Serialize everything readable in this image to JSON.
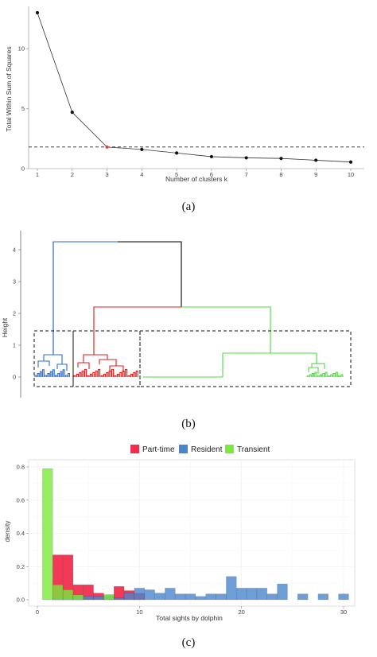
{
  "chart_data": [
    {
      "type": "line",
      "panel_label": "(a)",
      "xlabel": "Number of clusters k",
      "ylabel": "Total Within Sum of Squares",
      "x": [
        1,
        2,
        3,
        4,
        5,
        6,
        7,
        8,
        9,
        10
      ],
      "y": [
        13.0,
        4.7,
        1.8,
        1.6,
        1.3,
        1.0,
        0.9,
        0.85,
        0.7,
        0.55
      ],
      "highlight_x": 3,
      "reference_line_y": 1.8,
      "xticks": [
        "1",
        "2",
        "3",
        "4",
        "5",
        "6",
        "7",
        "8",
        "9",
        "10"
      ],
      "yticks": [
        "0",
        "5",
        "10"
      ],
      "ylim": [
        0,
        13.5
      ],
      "colors": {
        "line": "#333333",
        "point": "#111111",
        "highlight": "#e8423f"
      }
    },
    {
      "type": "dendrogram",
      "panel_label": "(b)",
      "ylabel": "Height",
      "yticks": [
        "0",
        "1",
        "2",
        "3",
        "4"
      ],
      "ylim": [
        0,
        4.3
      ],
      "merge_heights": {
        "root": 4.25,
        "red_green": 2.2,
        "blue": 0.7,
        "red": 0.7,
        "green": 0.75,
        "green_inner": 0.42
      },
      "cut_height": 1.45,
      "clusters": [
        "blue",
        "red",
        "green"
      ],
      "colors": {
        "blue": "#2a6dd1",
        "red": "#e32020",
        "green": "#4bdc3b",
        "root": "#000000"
      }
    },
    {
      "type": "bar",
      "panel_label": "(c)",
      "xlabel": "Total sights by dolphin",
      "ylabel": "density",
      "xticks": [
        "0",
        "10",
        "20",
        "30"
      ],
      "yticks": [
        "0.0",
        "0.2",
        "0.4",
        "0.6",
        "0.8"
      ],
      "xlim": [
        -1,
        31.5
      ],
      "ylim": [
        0,
        0.82
      ],
      "series": [
        {
          "name": "Part-time",
          "color": "#ef2f4f",
          "bins": [
            [
              1.5,
              2.5,
              0.27
            ],
            [
              2.5,
              3.5,
              0.27
            ],
            [
              3.5,
              4.5,
              0.09
            ],
            [
              4.5,
              5.5,
              0.09
            ],
            [
              5.5,
              6.5,
              0.04
            ],
            [
              6.5,
              7.5,
              0.02
            ],
            [
              7.5,
              8.5,
              0.08
            ],
            [
              8.5,
              9.5,
              0.055
            ],
            [
              9.5,
              10.5,
              0.04
            ]
          ]
        },
        {
          "name": "Resident",
          "color": "#4a86cc",
          "bins": [
            [
              1.5,
              2.5,
              0.01
            ],
            [
              2.5,
              3.5,
              0.01
            ],
            [
              3.5,
              4.5,
              0.02
            ],
            [
              4.5,
              5.5,
              0.02
            ],
            [
              5.5,
              6.5,
              0.02
            ],
            [
              6.5,
              7.5,
              0.03
            ],
            [
              7.5,
              8.5,
              0.01
            ],
            [
              8.5,
              9.5,
              0.04
            ],
            [
              9.5,
              10.5,
              0.07
            ],
            [
              10.5,
              11.5,
              0.06
            ],
            [
              11.5,
              12.5,
              0.04
            ],
            [
              12.5,
              13.5,
              0.07
            ],
            [
              13.5,
              14.5,
              0.035
            ],
            [
              14.5,
              15.5,
              0.035
            ],
            [
              15.5,
              16.5,
              0.02
            ],
            [
              16.5,
              17.5,
              0.035
            ],
            [
              17.5,
              18.5,
              0.035
            ],
            [
              18.5,
              19.5,
              0.14
            ],
            [
              19.5,
              20.5,
              0.07
            ],
            [
              20.5,
              21.5,
              0.07
            ],
            [
              21.5,
              22.5,
              0.07
            ],
            [
              22.5,
              23.5,
              0.035
            ],
            [
              23.5,
              24.5,
              0.095
            ],
            [
              25.5,
              26.5,
              0.035
            ],
            [
              27.5,
              28.5,
              0.035
            ],
            [
              29.5,
              30.5,
              0.035
            ]
          ]
        },
        {
          "name": "Transient",
          "color": "#7be93b",
          "bins": [
            [
              0.5,
              1.5,
              0.79
            ],
            [
              1.5,
              2.5,
              0.09
            ],
            [
              2.5,
              3.5,
              0.06
            ],
            [
              3.5,
              4.5,
              0.03
            ],
            [
              6.5,
              7.5,
              0.03
            ]
          ]
        }
      ]
    }
  ]
}
